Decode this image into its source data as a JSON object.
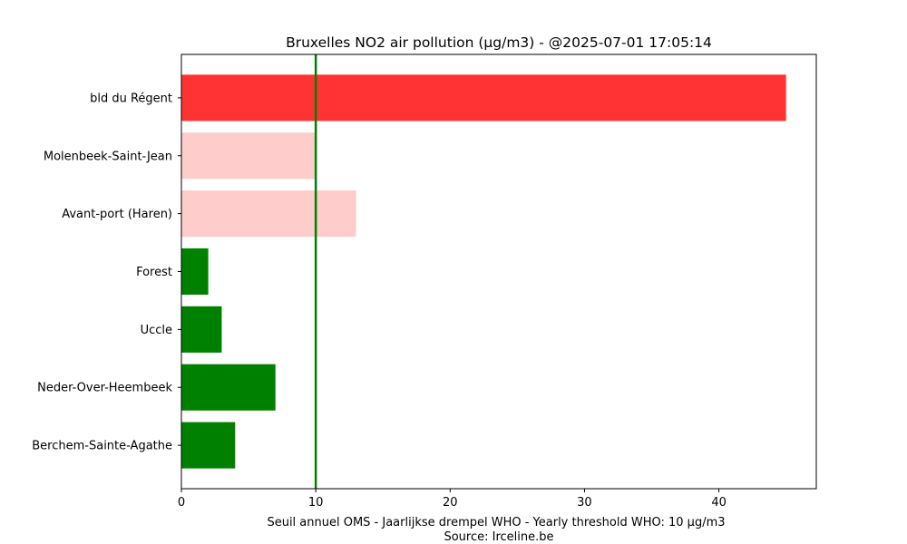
{
  "chart_data": {
    "type": "bar",
    "orientation": "horizontal",
    "title": "Bruxelles NO2 air pollution (µg/m3) - @2025-07-01 17:05:14",
    "xlabel": "Seuil annuel OMS - Jaarlijkse drempel WHO - Yearly threshold WHO: 10 µg/m3",
    "xlabel_source": "Source: Irceline.be",
    "ylabel": "",
    "categories": [
      "bld du Régent",
      "Molenbeek-Saint-Jean",
      "Avant-port (Haren)",
      "Forest",
      "Uccle",
      "Neder-Over-Heembeek",
      "Berchem-Sainte-Agathe"
    ],
    "values": [
      45,
      10,
      13,
      2,
      3,
      7,
      4
    ],
    "bar_colors": [
      "#ff3333",
      "#ffcccc",
      "#ffcccc",
      "#008000",
      "#008000",
      "#008000",
      "#008000"
    ],
    "threshold": {
      "value": 10,
      "color": "#008000"
    },
    "xlim": [
      0,
      47.25
    ],
    "xticks": [
      "0",
      "10",
      "20",
      "30",
      "40"
    ],
    "grid": false,
    "legend": "none"
  }
}
